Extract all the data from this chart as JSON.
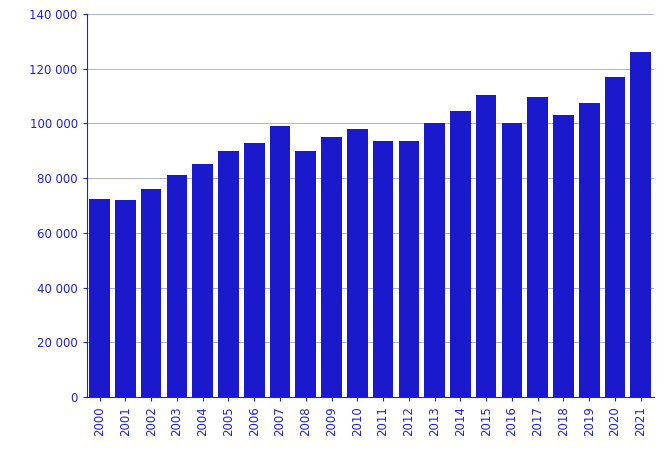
{
  "years": [
    2000,
    2001,
    2002,
    2003,
    2004,
    2005,
    2006,
    2007,
    2008,
    2009,
    2010,
    2011,
    2012,
    2013,
    2014,
    2015,
    2016,
    2017,
    2018,
    2019,
    2020,
    2021
  ],
  "values": [
    72500,
    72000,
    76000,
    81000,
    85000,
    90000,
    93000,
    99000,
    90000,
    95000,
    98000,
    93500,
    93500,
    100000,
    104500,
    110500,
    100000,
    109500,
    103000,
    107500,
    117000,
    126000
  ],
  "bar_color": "#1a1acc",
  "background_color": "#ffffff",
  "ylim": [
    0,
    140000
  ],
  "yticks": [
    0,
    20000,
    40000,
    60000,
    80000,
    100000,
    120000,
    140000
  ],
  "grid_color": "#b0b0d8",
  "tick_color": "#2222cc",
  "axis_color": "#2222cc",
  "figsize": [
    6.67,
    4.67
  ],
  "dpi": 100
}
